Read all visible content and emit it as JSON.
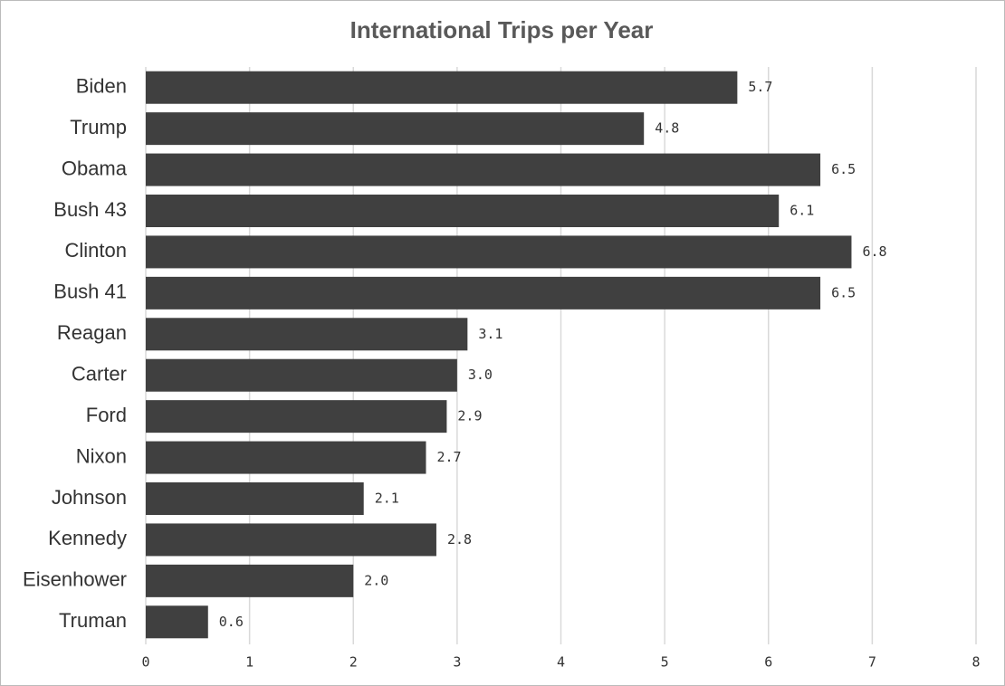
{
  "chart_data": {
    "type": "bar",
    "orientation": "horizontal",
    "title": "International Trips per Year",
    "categories": [
      "Biden",
      "Trump",
      "Obama",
      "Bush 43",
      "Clinton",
      "Bush 41",
      "Reagan",
      "Carter",
      "Ford",
      "Nixon",
      "Johnson",
      "Kennedy",
      "Eisenhower",
      "Truman"
    ],
    "values": [
      5.7,
      4.8,
      6.5,
      6.1,
      6.8,
      6.5,
      3.1,
      3.0,
      2.9,
      2.7,
      2.1,
      2.8,
      2.0,
      0.6
    ],
    "value_labels": [
      "5.7",
      "4.8",
      "6.5",
      "6.1",
      "6.8",
      "6.5",
      "3.1",
      "3.0",
      "2.9",
      "2.7",
      "2.1",
      "2.8",
      "2.0",
      "0.6"
    ],
    "color": "#404040",
    "xlim": [
      0,
      8
    ],
    "xticks": [
      0,
      1,
      2,
      3,
      4,
      5,
      6,
      7,
      8
    ],
    "grid": true
  }
}
